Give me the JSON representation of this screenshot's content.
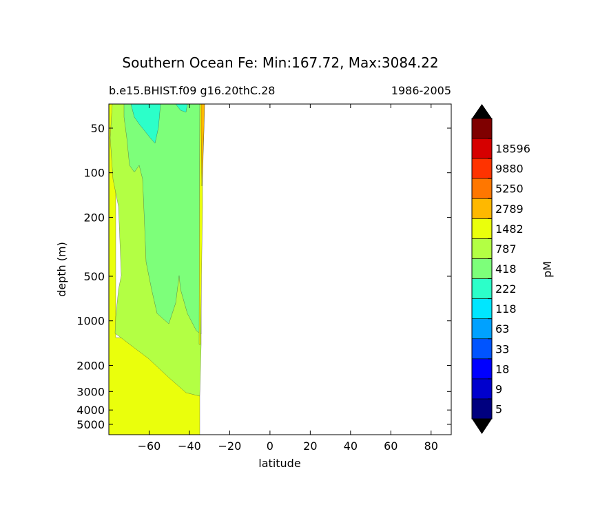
{
  "chart_data": {
    "type": "contour",
    "title": "Southern Ocean Fe: Min:167.72, Max:3084.22",
    "subtitle_left": "b.e15.BHIST.f09 g16.20thC.28",
    "subtitle_right": "1986-2005",
    "xlabel": "latitude",
    "ylabel": "depth (m)",
    "xlim": [
      -80,
      90
    ],
    "x_ticks": [
      -60,
      -40,
      -20,
      0,
      20,
      40,
      60,
      80
    ],
    "x_tick_labels": [
      "−60",
      "−40",
      "−20",
      "0",
      "20",
      "40",
      "60",
      "80"
    ],
    "y_scale": "log",
    "ylim": [
      5500,
      20
    ],
    "y_ticks": [
      50,
      100,
      200,
      500,
      1000,
      2000,
      3000,
      4000,
      5000
    ],
    "y_tick_labels": [
      "50",
      "100",
      "200",
      "500",
      "1000",
      "2000",
      "3000",
      "4000",
      "5000"
    ],
    "colorbar": {
      "label": "pM",
      "levels": [
        "5",
        "9",
        "18",
        "33",
        "63",
        "118",
        "222",
        "418",
        "787",
        "1482",
        "2789",
        "5250",
        "9880",
        "18596"
      ],
      "colors": [
        "#00007f",
        "#0000cd",
        "#0000ff",
        "#0054ff",
        "#00a1ff",
        "#00e6ff",
        "#2cffc9",
        "#7dff7a",
        "#b3ff44",
        "#eaff0c",
        "#ffb800",
        "#ff7700",
        "#ff3300",
        "#d60000",
        "#7f0000"
      ],
      "extend": "both"
    },
    "regions": [
      {
        "range": "222-418",
        "color": "#2cffc9",
        "extent": "surface, ~-72 to -52 lat"
      },
      {
        "range": "418-787",
        "color": "#7dff7a",
        "extent": "upper 1000 m, ~-68 to -35 lat"
      },
      {
        "range": "787-1482",
        "color": "#b3ff44",
        "extent": "~20-3500 m, -80 to -35 lat"
      },
      {
        "range": "1482-2789",
        "color": "#eaff0c",
        "extent": "deep ocean below ~1500 m and coastal margin"
      },
      {
        "range": "2789-5250",
        "color": "#ffb800",
        "extent": "thin band near -34 lat, surface"
      }
    ]
  }
}
